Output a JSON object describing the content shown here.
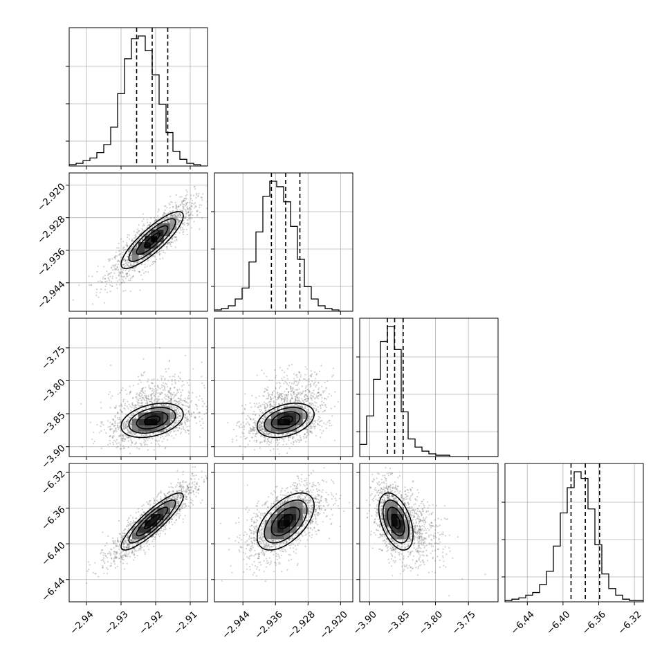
{
  "chart_data": {
    "type": "corner",
    "grid": true,
    "parameters": [
      {
        "mean": -2.921,
        "sigma": 0.0045,
        "range": [
          -2.945,
          -2.905
        ],
        "ticks": [
          -2.94,
          -2.93,
          -2.92,
          -2.91
        ],
        "tick_labels": [
          "−2.94",
          "−2.93",
          "−2.92",
          "−2.91"
        ],
        "quantiles": [
          -2.9255,
          -2.921,
          -2.9165
        ]
      },
      {
        "mean": -2.9335,
        "sigma": 0.0035,
        "range": [
          -2.951,
          -2.917
        ],
        "ticks": [
          -2.944,
          -2.936,
          -2.928,
          -2.92
        ],
        "tick_labels": [
          "−2.944",
          "−2.936",
          "−2.928",
          "−2.920"
        ],
        "quantiles": [
          -2.937,
          -2.9335,
          -2.93
        ]
      },
      {
        "mean": -3.86,
        "sigma": 0.013,
        "range": [
          -3.915,
          -3.705
        ],
        "ticks": [
          -3.9,
          -3.85,
          -3.8,
          -3.75
        ],
        "tick_labels": [
          "−3.90",
          "−3.85",
          "−3.80",
          "−3.75"
        ],
        "quantiles": [
          -3.873,
          -3.862,
          -3.849
        ]
      },
      {
        "mean": -6.375,
        "sigma": 0.016,
        "range": [
          -6.465,
          -6.31
        ],
        "ticks": [
          -6.44,
          -6.4,
          -6.36,
          -6.32
        ],
        "tick_labels": [
          "−6.44",
          "−6.40",
          "−6.36",
          "−6.32"
        ],
        "quantiles": [
          -6.391,
          -6.375,
          -6.359
        ]
      }
    ],
    "histograms": [
      {
        "counts": [
          1,
          2,
          4,
          6,
          10,
          16,
          29,
          54,
          80,
          95,
          97,
          86,
          68,
          46,
          25,
          11,
          5,
          2,
          1,
          0
        ]
      },
      {
        "counts": [
          1,
          2,
          4,
          9,
          17,
          36,
          58,
          84,
          95,
          91,
          80,
          62,
          38,
          18,
          9,
          4,
          2,
          1,
          0,
          0
        ]
      },
      {
        "counts": [
          9,
          30,
          57,
          85,
          96,
          79,
          33,
          13,
          7,
          4,
          2,
          1,
          1,
          0,
          0,
          0,
          0,
          0,
          0,
          0
        ]
      },
      {
        "counts": [
          1,
          2,
          3,
          5,
          7,
          13,
          23,
          42,
          67,
          86,
          98,
          93,
          70,
          43,
          21,
          10,
          5,
          2,
          1,
          1
        ]
      }
    ],
    "correlations": [
      {
        "row": 1,
        "col": 0,
        "rho": 0.85
      },
      {
        "row": 2,
        "col": 0,
        "rho": 0.35
      },
      {
        "row": 2,
        "col": 1,
        "rho": 0.35
      },
      {
        "row": 3,
        "col": 0,
        "rho": 0.88
      },
      {
        "row": 3,
        "col": 1,
        "rho": 0.55
      },
      {
        "row": 3,
        "col": 2,
        "rho": -0.45
      }
    ],
    "contour_levels_sigma": [
      0.5,
      1.0,
      1.5,
      2.0
    ]
  }
}
